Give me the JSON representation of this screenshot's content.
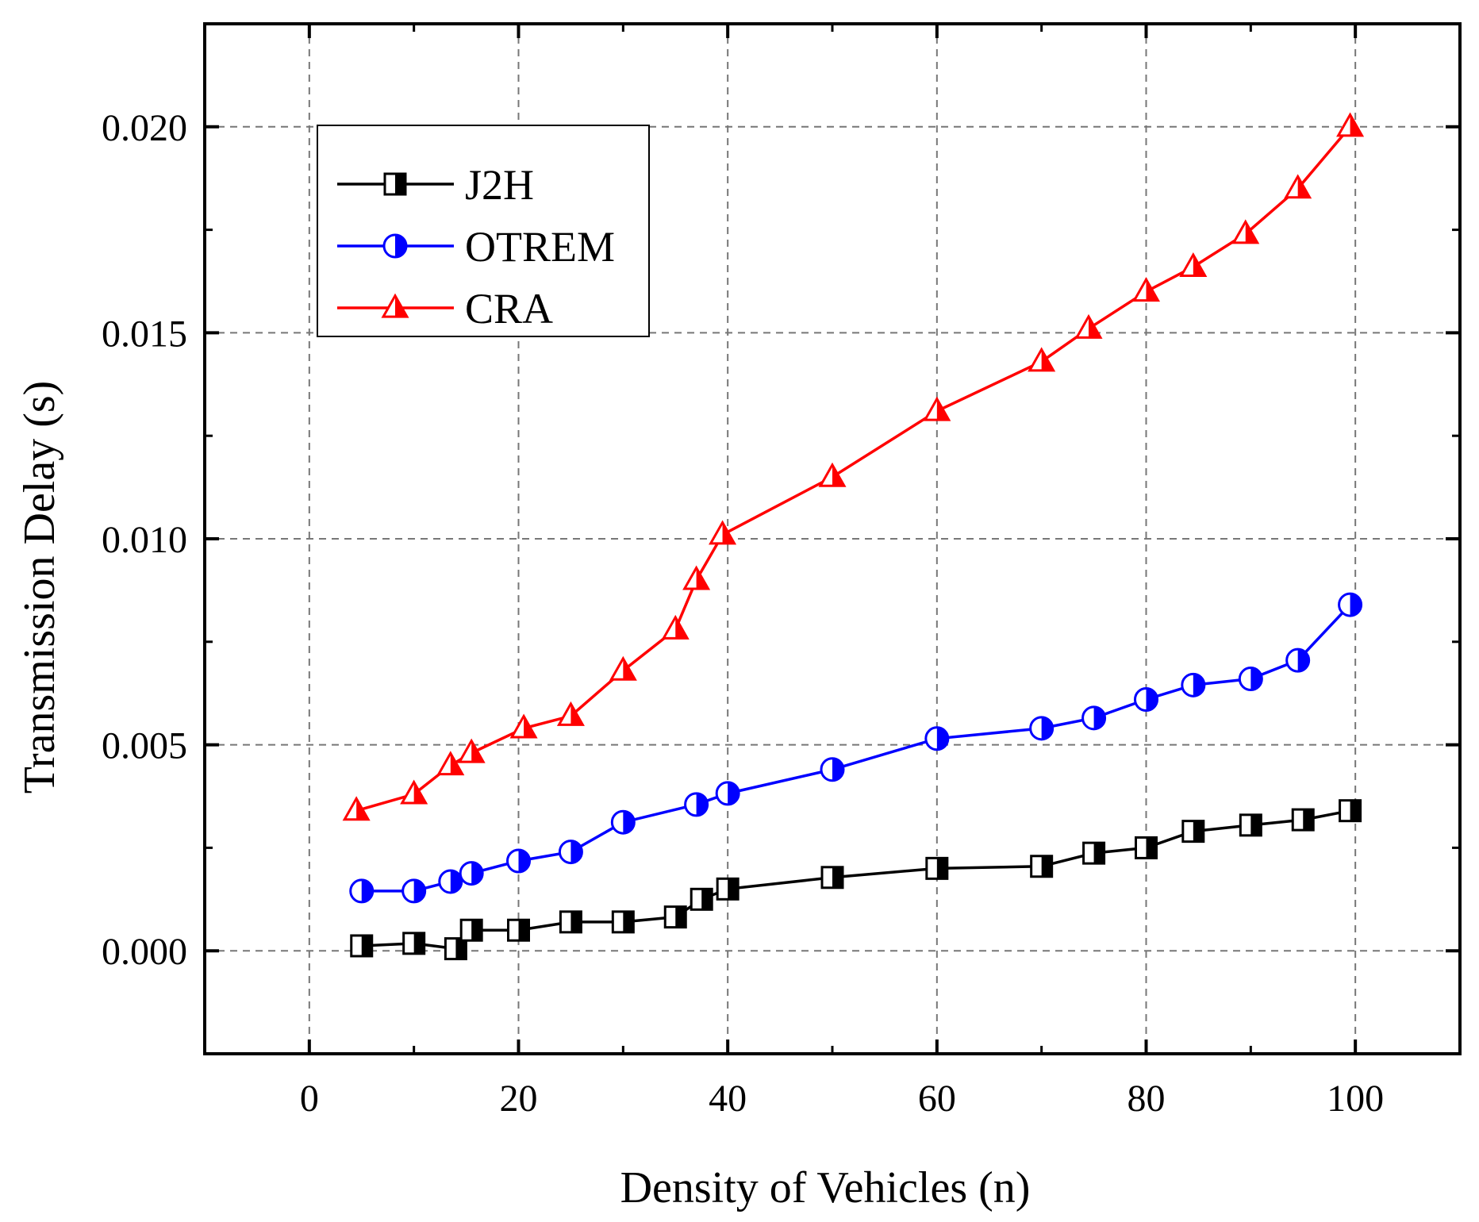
{
  "chart_data": {
    "type": "line",
    "title": "",
    "xlabel": "Density of Vehicles (n)",
    "ylabel": "Transmission Delay (s)",
    "xlim": [
      -10,
      110
    ],
    "ylim": [
      -0.0025,
      0.0225
    ],
    "xticks": [
      0,
      20,
      40,
      60,
      80,
      100
    ],
    "xtick_labels": [
      "0",
      "20",
      "40",
      "60",
      "80",
      "100"
    ],
    "yticks": [
      0.0,
      0.005,
      0.01,
      0.015,
      0.02
    ],
    "ytick_labels": [
      "0.000",
      "0.005",
      "0.010",
      "0.015",
      "0.020"
    ],
    "grid": true,
    "legend_position": "top-left",
    "series": [
      {
        "name": "J2H",
        "color": "#000000",
        "marker": "half-filled-square",
        "x": [
          5,
          10,
          14,
          15.5,
          20,
          25,
          30,
          35,
          37.5,
          40,
          50,
          60,
          70,
          75,
          80,
          84.5,
          90,
          95,
          99.5
        ],
        "y": [
          0.00012,
          0.00018,
          5e-05,
          0.0005,
          0.0005,
          0.0007,
          0.0007,
          0.00082,
          0.00125,
          0.0015,
          0.00178,
          0.002,
          0.00205,
          0.00237,
          0.0025,
          0.0029,
          0.00305,
          0.00318,
          0.0034
        ]
      },
      {
        "name": "OTREM",
        "color": "#0000ff",
        "marker": "half-filled-circle",
        "x": [
          5,
          10,
          13.5,
          15.5,
          20,
          25,
          30,
          37,
          40,
          50,
          60,
          70,
          75,
          80,
          84.5,
          90,
          94.5,
          99.5
        ],
        "y": [
          0.00145,
          0.00145,
          0.00168,
          0.00188,
          0.00218,
          0.0024,
          0.00312,
          0.00355,
          0.00382,
          0.0044,
          0.00515,
          0.0054,
          0.00565,
          0.0061,
          0.00645,
          0.0066,
          0.00705,
          0.0084
        ]
      },
      {
        "name": "CRA",
        "color": "#ff0000",
        "marker": "half-filled-triangle",
        "x": [
          4.5,
          10,
          13.5,
          15.5,
          20.5,
          25,
          30,
          35,
          37,
          39.5,
          50,
          60,
          70,
          74.5,
          80,
          84.5,
          89.5,
          94.5,
          99.5
        ],
        "y": [
          0.0034,
          0.0038,
          0.0045,
          0.0048,
          0.0054,
          0.0057,
          0.0068,
          0.0078,
          0.009,
          0.0101,
          0.0115,
          0.0131,
          0.0143,
          0.0151,
          0.016,
          0.0166,
          0.0174,
          0.0185,
          0.02
        ]
      }
    ]
  }
}
